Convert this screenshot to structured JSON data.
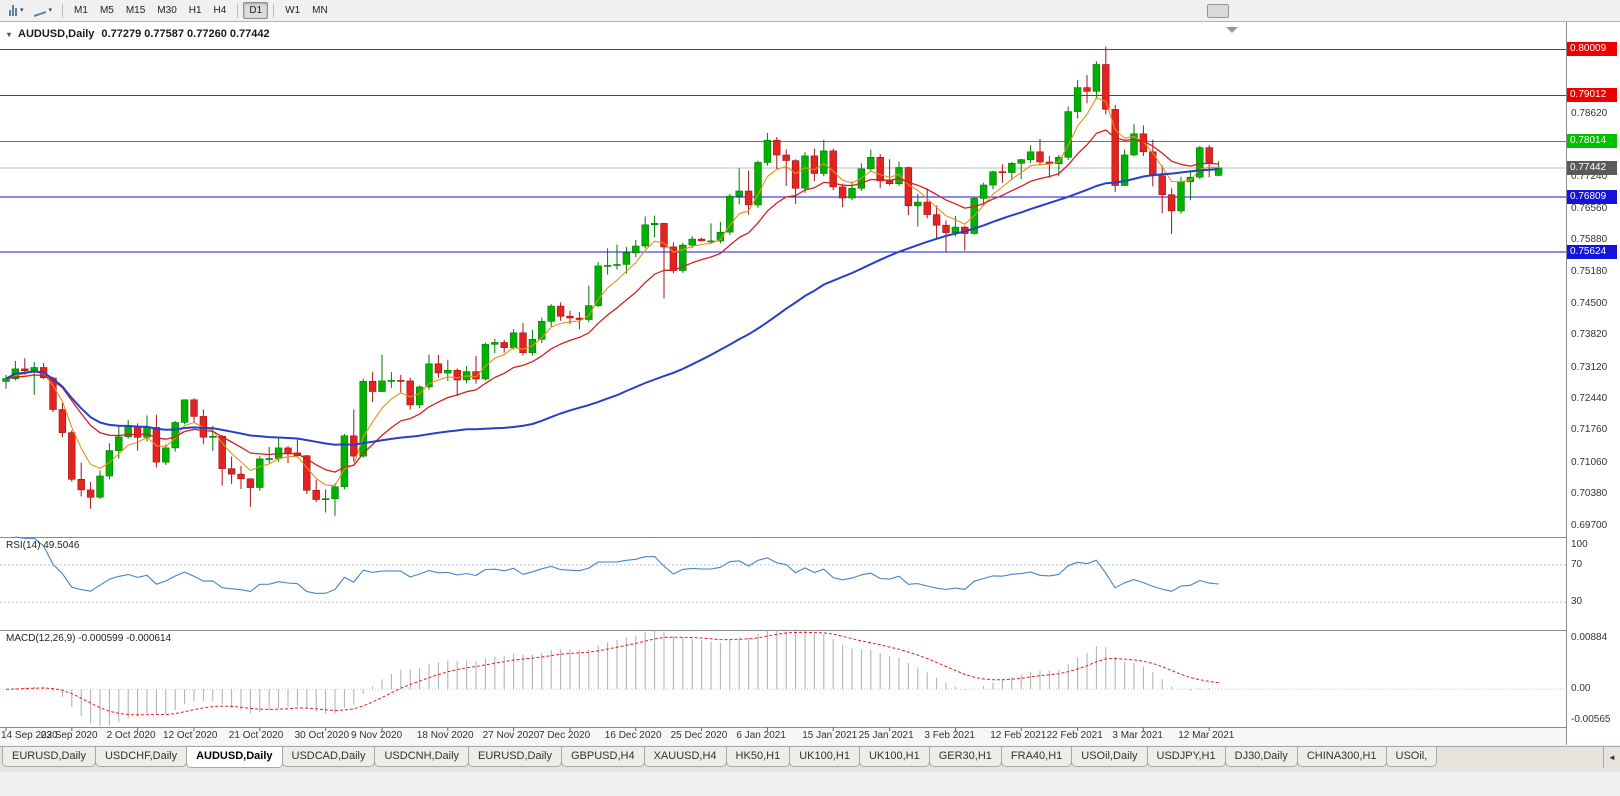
{
  "toolbar": {
    "timeframes": [
      "M1",
      "M5",
      "M15",
      "M30",
      "H1",
      "H4",
      "D1",
      "W1",
      "MN"
    ],
    "active_timeframe": "D1"
  },
  "chart": {
    "title_symbol": "AUDUSD,Daily",
    "title_ohlc": "0.77279 0.77587 0.77260 0.77442"
  },
  "indicators": {
    "rsi_label": "RSI(14) 49.5046",
    "macd_label": "MACD(12,26,9) -0.000599 -0.000614"
  },
  "tabs": {
    "active_index": 2,
    "items": [
      "EURUSD,Daily",
      "USDCHF,Daily",
      "AUDUSD,Daily",
      "USDCAD,Daily",
      "USDCNH,Daily",
      "EURUSD,Daily",
      "GBPUSD,H4",
      "XAUUSD,H4",
      "HK50,H1",
      "UK100,H1",
      "UK100,H1",
      "GER30,H1",
      "FRA40,H1",
      "USOil,Daily",
      "USDJPY,H1",
      "DJ30,Daily",
      "CHINA300,H1",
      "USOil,"
    ]
  },
  "chart_data": {
    "type": "candlestick",
    "symbol": "AUDUSD",
    "timeframe": "Daily",
    "last_ohlc": {
      "open": 0.77279,
      "high": 0.77587,
      "low": 0.7726,
      "close": 0.77442
    },
    "current_price": 0.77442,
    "current_price_label": "0.77442",
    "price_axis_labels": [
      "0.79920",
      "0.78620",
      "0.77940",
      "0.77240",
      "0.76560",
      "0.75880",
      "0.75180",
      "0.74500",
      "0.73820",
      "0.73120",
      "0.72440",
      "0.71760",
      "0.71060",
      "0.70380",
      "0.69700"
    ],
    "horizontal_lines": [
      {
        "price": 0.80009,
        "label": "0.80009",
        "color": "#EE0000"
      },
      {
        "price": 0.79012,
        "label": "0.79012",
        "color": "#EE0000"
      },
      {
        "price": 0.78014,
        "label": "0.78014",
        "color": "#00C000"
      },
      {
        "price": 0.76809,
        "label": "0.76809",
        "color": "#1414DC"
      },
      {
        "price": 0.75624,
        "label": "0.75624",
        "color": "#1414DC"
      }
    ],
    "x_labels": [
      {
        "i": 0,
        "t": "14 Sep 2020"
      },
      {
        "i": 7,
        "t": "23 Sep 2020"
      },
      {
        "i": 14,
        "t": "2 Oct 2020"
      },
      {
        "i": 20,
        "t": "12 Oct 2020"
      },
      {
        "i": 27,
        "t": "21 Oct 2020"
      },
      {
        "i": 34,
        "t": "30 Oct 2020"
      },
      {
        "i": 40,
        "t": "9 Nov 2020"
      },
      {
        "i": 47,
        "t": "18 Nov 2020"
      },
      {
        "i": 54,
        "t": "27 Nov 2020"
      },
      {
        "i": 60,
        "t": "7 Dec 2020"
      },
      {
        "i": 67,
        "t": "16 Dec 2020"
      },
      {
        "i": 74,
        "t": "25 Dec 2020"
      },
      {
        "i": 81,
        "t": "6 Jan 2021"
      },
      {
        "i": 88,
        "t": "15 Jan 2021"
      },
      {
        "i": 94,
        "t": "25 Jan 2021"
      },
      {
        "i": 101,
        "t": "3 Feb 2021"
      },
      {
        "i": 108,
        "t": "12 Feb 2021"
      },
      {
        "i": 114,
        "t": "22 Feb 2021"
      },
      {
        "i": 121,
        "t": "3 Mar 2021"
      },
      {
        "i": 128,
        "t": "12 Mar 2021"
      }
    ],
    "candles": [
      [
        0.7282,
        0.7296,
        0.7266,
        0.7288
      ],
      [
        0.7288,
        0.7326,
        0.7284,
        0.7309
      ],
      [
        0.7309,
        0.7332,
        0.7296,
        0.7305
      ],
      [
        0.7305,
        0.7324,
        0.7253,
        0.7312
      ],
      [
        0.7312,
        0.7322,
        0.7287,
        0.729
      ],
      [
        0.7289,
        0.7292,
        0.7215,
        0.7221
      ],
      [
        0.7221,
        0.7235,
        0.7161,
        0.7171
      ],
      [
        0.7171,
        0.7176,
        0.7065,
        0.707
      ],
      [
        0.707,
        0.7106,
        0.7033,
        0.7047
      ],
      [
        0.7047,
        0.7064,
        0.7006,
        0.7031
      ],
      [
        0.7031,
        0.7089,
        0.7027,
        0.7077
      ],
      [
        0.7077,
        0.7148,
        0.707,
        0.7132
      ],
      [
        0.7132,
        0.7185,
        0.7115,
        0.7162
      ],
      [
        0.7162,
        0.7198,
        0.7158,
        0.7183
      ],
      [
        0.7183,
        0.7191,
        0.7132,
        0.7161
      ],
      [
        0.7161,
        0.7208,
        0.7152,
        0.7182
      ],
      [
        0.7182,
        0.721,
        0.7096,
        0.7107
      ],
      [
        0.7107,
        0.7145,
        0.7101,
        0.7138
      ],
      [
        0.7138,
        0.7196,
        0.713,
        0.7193
      ],
      [
        0.7193,
        0.7243,
        0.7189,
        0.7242
      ],
      [
        0.7242,
        0.7245,
        0.7192,
        0.7206
      ],
      [
        0.7206,
        0.7221,
        0.7146,
        0.7161
      ],
      [
        0.7161,
        0.7186,
        0.7131,
        0.7163
      ],
      [
        0.7163,
        0.7166,
        0.7056,
        0.7093
      ],
      [
        0.7093,
        0.7119,
        0.706,
        0.7081
      ],
      [
        0.7081,
        0.7099,
        0.7049,
        0.7071
      ],
      [
        0.7071,
        0.7072,
        0.701,
        0.7052
      ],
      [
        0.7052,
        0.712,
        0.7045,
        0.7114
      ],
      [
        0.7114,
        0.714,
        0.7105,
        0.7115
      ],
      [
        0.7115,
        0.7159,
        0.7108,
        0.7138
      ],
      [
        0.7138,
        0.7142,
        0.7105,
        0.7127
      ],
      [
        0.7127,
        0.7157,
        0.7118,
        0.7121
      ],
      [
        0.7121,
        0.7122,
        0.7038,
        0.7046
      ],
      [
        0.7046,
        0.7069,
        0.7021,
        0.7026
      ],
      [
        0.7026,
        0.7048,
        0.6998,
        0.7028
      ],
      [
        0.7028,
        0.7061,
        0.6991,
        0.7054
      ],
      [
        0.7054,
        0.7168,
        0.7048,
        0.7164
      ],
      [
        0.7164,
        0.7221,
        0.7108,
        0.712
      ],
      [
        0.712,
        0.7288,
        0.7117,
        0.7282
      ],
      [
        0.7282,
        0.7302,
        0.7237,
        0.726
      ],
      [
        0.726,
        0.734,
        0.7259,
        0.7283
      ],
      [
        0.7283,
        0.7302,
        0.7268,
        0.7284
      ],
      [
        0.7284,
        0.7296,
        0.7258,
        0.7283
      ],
      [
        0.7283,
        0.729,
        0.7221,
        0.7231
      ],
      [
        0.7231,
        0.7273,
        0.7224,
        0.727
      ],
      [
        0.727,
        0.734,
        0.7264,
        0.732
      ],
      [
        0.732,
        0.7339,
        0.729,
        0.73
      ],
      [
        0.73,
        0.7329,
        0.7283,
        0.7306
      ],
      [
        0.7306,
        0.731,
        0.725,
        0.7285
      ],
      [
        0.7285,
        0.7315,
        0.7278,
        0.7303
      ],
      [
        0.7303,
        0.7337,
        0.7277,
        0.7287
      ],
      [
        0.7287,
        0.7366,
        0.7284,
        0.7362
      ],
      [
        0.7362,
        0.7374,
        0.7343,
        0.7366
      ],
      [
        0.7366,
        0.7372,
        0.7344,
        0.7355
      ],
      [
        0.7355,
        0.7395,
        0.7351,
        0.7387
      ],
      [
        0.7387,
        0.7408,
        0.7338,
        0.7344
      ],
      [
        0.7344,
        0.7394,
        0.7338,
        0.7373
      ],
      [
        0.7373,
        0.742,
        0.7365,
        0.7412
      ],
      [
        0.7412,
        0.7449,
        0.74,
        0.7445
      ],
      [
        0.7445,
        0.7453,
        0.7413,
        0.7423
      ],
      [
        0.7423,
        0.7435,
        0.7406,
        0.7419
      ],
      [
        0.7419,
        0.7432,
        0.7395,
        0.7416
      ],
      [
        0.7416,
        0.7489,
        0.741,
        0.7446
      ],
      [
        0.7446,
        0.754,
        0.7443,
        0.7532
      ],
      [
        0.7532,
        0.757,
        0.7513,
        0.7533
      ],
      [
        0.7533,
        0.7578,
        0.7524,
        0.7535
      ],
      [
        0.7535,
        0.7573,
        0.7515,
        0.756
      ],
      [
        0.756,
        0.7588,
        0.7551,
        0.7575
      ],
      [
        0.7575,
        0.7639,
        0.757,
        0.7621
      ],
      [
        0.7621,
        0.7641,
        0.7594,
        0.7624
      ],
      [
        0.7624,
        0.7625,
        0.7462,
        0.7573
      ],
      [
        0.7573,
        0.7583,
        0.7516,
        0.7522
      ],
      [
        0.7522,
        0.7582,
        0.7517,
        0.7577
      ],
      [
        0.7577,
        0.7596,
        0.757,
        0.759
      ],
      [
        0.759,
        0.7593,
        0.7585,
        0.7586
      ],
      [
        0.7586,
        0.7624,
        0.758,
        0.7586
      ],
      [
        0.7586,
        0.7627,
        0.7581,
        0.7605
      ],
      [
        0.7605,
        0.7688,
        0.7599,
        0.7683
      ],
      [
        0.7683,
        0.7743,
        0.7665,
        0.7694
      ],
      [
        0.7694,
        0.7738,
        0.7643,
        0.7664
      ],
      [
        0.7664,
        0.776,
        0.7658,
        0.7756
      ],
      [
        0.7756,
        0.782,
        0.7749,
        0.7804
      ],
      [
        0.7804,
        0.7811,
        0.7742,
        0.7772
      ],
      [
        0.7772,
        0.7784,
        0.7705,
        0.776
      ],
      [
        0.776,
        0.7763,
        0.7666,
        0.77
      ],
      [
        0.77,
        0.7778,
        0.769,
        0.777
      ],
      [
        0.777,
        0.7786,
        0.7715,
        0.7732
      ],
      [
        0.7732,
        0.7805,
        0.7726,
        0.7781
      ],
      [
        0.7781,
        0.7786,
        0.7696,
        0.7703
      ],
      [
        0.7703,
        0.771,
        0.7659,
        0.7679
      ],
      [
        0.7679,
        0.7714,
        0.7674,
        0.77
      ],
      [
        0.77,
        0.7754,
        0.7694,
        0.7742
      ],
      [
        0.7742,
        0.7784,
        0.7736,
        0.7767
      ],
      [
        0.7767,
        0.7774,
        0.7701,
        0.7716
      ],
      [
        0.7716,
        0.7763,
        0.7706,
        0.771
      ],
      [
        0.771,
        0.7758,
        0.7705,
        0.7745
      ],
      [
        0.7745,
        0.7747,
        0.7642,
        0.7662
      ],
      [
        0.7662,
        0.7688,
        0.7617,
        0.767
      ],
      [
        0.767,
        0.77,
        0.7635,
        0.7643
      ],
      [
        0.7643,
        0.7663,
        0.759,
        0.762
      ],
      [
        0.762,
        0.763,
        0.7563,
        0.7604
      ],
      [
        0.7604,
        0.764,
        0.7596,
        0.7616
      ],
      [
        0.7616,
        0.7619,
        0.7565,
        0.7602
      ],
      [
        0.7602,
        0.768,
        0.76,
        0.7678
      ],
      [
        0.7678,
        0.7712,
        0.7662,
        0.7707
      ],
      [
        0.7707,
        0.7738,
        0.7698,
        0.7736
      ],
      [
        0.7736,
        0.7752,
        0.7712,
        0.7734
      ],
      [
        0.7734,
        0.7757,
        0.7717,
        0.7754
      ],
      [
        0.7754,
        0.7764,
        0.772,
        0.7762
      ],
      [
        0.7762,
        0.7793,
        0.7755,
        0.7779
      ],
      [
        0.7779,
        0.7807,
        0.7749,
        0.7757
      ],
      [
        0.7757,
        0.777,
        0.7723,
        0.7753
      ],
      [
        0.7753,
        0.7772,
        0.7726,
        0.7767
      ],
      [
        0.7767,
        0.7877,
        0.7761,
        0.7866
      ],
      [
        0.7866,
        0.7934,
        0.7851,
        0.7918
      ],
      [
        0.7918,
        0.7945,
        0.7884,
        0.791
      ],
      [
        0.791,
        0.7975,
        0.7894,
        0.7968
      ],
      [
        0.7968,
        0.8007,
        0.786,
        0.7871
      ],
      [
        0.7871,
        0.788,
        0.7692,
        0.7706
      ],
      [
        0.7706,
        0.7784,
        0.7705,
        0.7772
      ],
      [
        0.7772,
        0.7839,
        0.7769,
        0.7818
      ],
      [
        0.7818,
        0.7836,
        0.777,
        0.7779
      ],
      [
        0.7779,
        0.7805,
        0.7704,
        0.7727
      ],
      [
        0.7727,
        0.775,
        0.7646,
        0.7686
      ],
      [
        0.7686,
        0.77,
        0.7601,
        0.7651
      ],
      [
        0.7651,
        0.7725,
        0.7645,
        0.7714
      ],
      [
        0.7714,
        0.7739,
        0.7674,
        0.7724
      ],
      [
        0.7724,
        0.7792,
        0.772,
        0.7788
      ],
      [
        0.7788,
        0.7794,
        0.7724,
        0.7755
      ],
      [
        0.77279,
        0.77587,
        0.7726,
        0.77442
      ]
    ],
    "moving_averages": [
      {
        "color": "#E89018",
        "period": 5,
        "method": "ema",
        "width": 1.1
      },
      {
        "color": "#D42020",
        "period": 13,
        "method": "ema",
        "width": 1.3
      },
      {
        "color": "#2840C8",
        "period": 50,
        "method": "sma",
        "width": 2
      }
    ],
    "rsi": {
      "label": "RSI(14) 49.5046",
      "value": 49.5046,
      "period": 14,
      "levels": [
        "100",
        "70",
        "30"
      ],
      "line_color": "#4585C8"
    },
    "macd": {
      "label": "MACD(12,26,9) -0.000599 -0.000614",
      "values": [
        -0.000599,
        -0.000614
      ],
      "axis_labels": [
        "0.00884",
        "0.00",
        "-0.00565"
      ],
      "histogram_color": "#ADADAD",
      "signal_color": "#E02020"
    }
  }
}
